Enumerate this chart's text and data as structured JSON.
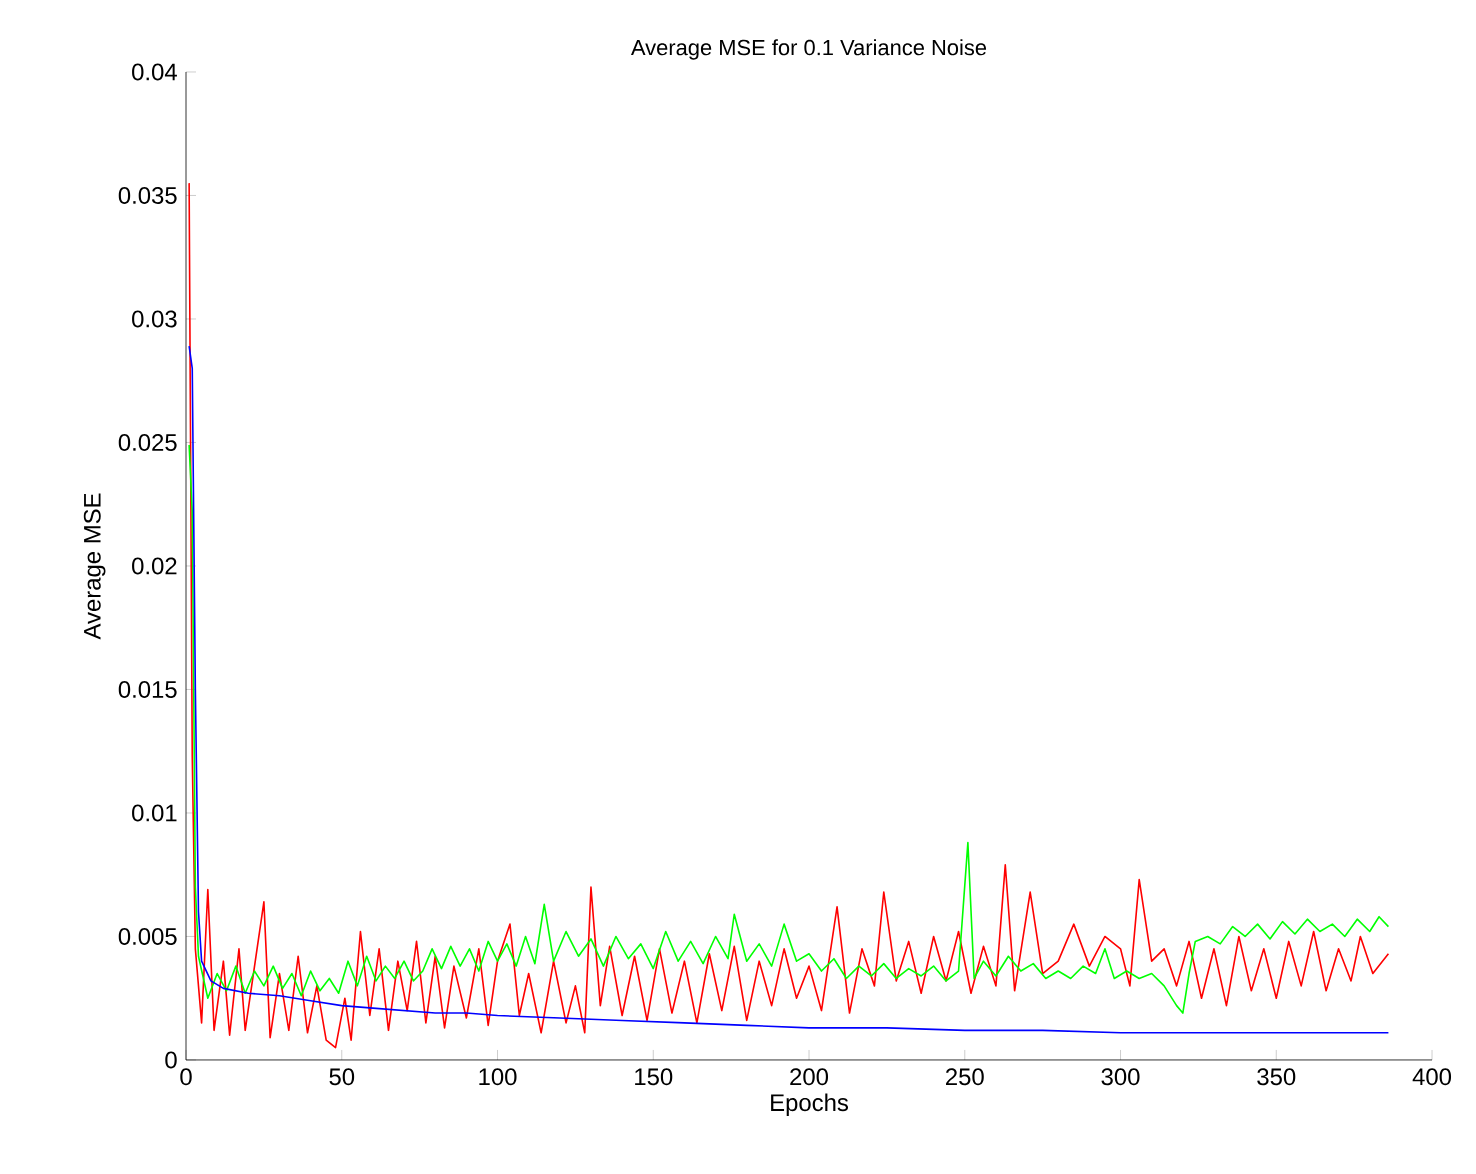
{
  "chart_data": {
    "type": "line",
    "title": "Average MSE for 0.1 Variance Noise",
    "xlabel": "Epochs",
    "ylabel": "Average MSE",
    "xlim": [
      0,
      400
    ],
    "ylim": [
      0,
      0.04
    ],
    "xticks": [
      0,
      50,
      100,
      150,
      200,
      250,
      300,
      350,
      400
    ],
    "yticks": [
      0,
      0.005,
      0.01,
      0.015,
      0.02,
      0.025,
      0.03,
      0.035,
      0.04
    ],
    "series": [
      {
        "color": "#ff0000",
        "x": [
          1,
          2,
          3,
          5,
          7,
          9,
          12,
          14,
          17,
          19,
          22,
          25,
          27,
          30,
          33,
          36,
          39,
          42,
          45,
          48,
          51,
          53,
          56,
          59,
          62,
          65,
          68,
          71,
          74,
          77,
          80,
          83,
          86,
          90,
          94,
          97,
          100,
          104,
          107,
          110,
          114,
          118,
          122,
          125,
          128,
          130,
          133,
          136,
          140,
          144,
          148,
          152,
          156,
          160,
          164,
          168,
          172,
          176,
          180,
          184,
          188,
          192,
          196,
          200,
          204,
          209,
          213,
          217,
          221,
          224,
          228,
          232,
          236,
          240,
          244,
          248,
          252,
          256,
          260,
          263,
          266,
          271,
          275,
          280,
          285,
          290,
          295,
          300,
          303,
          306,
          310,
          314,
          318,
          322,
          326,
          330,
          334,
          338,
          342,
          346,
          350,
          354,
          358,
          362,
          366,
          370,
          374,
          377,
          381,
          386
        ],
        "values": [
          0.0355,
          0.0123,
          0.0045,
          0.0015,
          0.0069,
          0.0012,
          0.004,
          0.001,
          0.0045,
          0.0012,
          0.0038,
          0.0064,
          0.0009,
          0.0035,
          0.0012,
          0.0042,
          0.0011,
          0.003,
          0.0008,
          0.0005,
          0.0025,
          0.0008,
          0.0052,
          0.0018,
          0.0045,
          0.0012,
          0.004,
          0.002,
          0.0048,
          0.0015,
          0.0042,
          0.0013,
          0.0038,
          0.0017,
          0.0045,
          0.0014,
          0.004,
          0.0055,
          0.0018,
          0.0035,
          0.0011,
          0.004,
          0.0015,
          0.003,
          0.0011,
          0.007,
          0.0022,
          0.0046,
          0.0018,
          0.0042,
          0.0016,
          0.0045,
          0.0019,
          0.004,
          0.0015,
          0.0043,
          0.002,
          0.0046,
          0.0016,
          0.004,
          0.0022,
          0.0045,
          0.0025,
          0.0038,
          0.002,
          0.0062,
          0.0019,
          0.0045,
          0.003,
          0.0068,
          0.0032,
          0.0048,
          0.0027,
          0.005,
          0.0032,
          0.0052,
          0.0027,
          0.0046,
          0.003,
          0.0079,
          0.0028,
          0.0068,
          0.0035,
          0.004,
          0.0055,
          0.0038,
          0.005,
          0.0045,
          0.003,
          0.0073,
          0.004,
          0.0045,
          0.003,
          0.0048,
          0.0025,
          0.0045,
          0.0022,
          0.005,
          0.0028,
          0.0045,
          0.0025,
          0.0048,
          0.003,
          0.0052,
          0.0028,
          0.0045,
          0.0032,
          0.005,
          0.0035,
          0.0043
        ]
      },
      {
        "color": "#00ff00",
        "x": [
          1,
          2,
          3,
          4,
          7,
          10,
          13,
          16,
          19,
          22,
          25,
          28,
          31,
          34,
          37,
          40,
          43,
          46,
          49,
          52,
          55,
          58,
          61,
          64,
          67,
          70,
          73,
          76,
          79,
          82,
          85,
          88,
          91,
          94,
          97,
          100,
          103,
          106,
          109,
          112,
          115,
          118,
          122,
          126,
          130,
          134,
          138,
          142,
          146,
          150,
          154,
          158,
          162,
          166,
          170,
          174,
          176,
          180,
          184,
          188,
          192,
          196,
          200,
          204,
          208,
          212,
          216,
          220,
          224,
          228,
          232,
          236,
          240,
          244,
          248,
          251,
          253,
          256,
          260,
          264,
          268,
          272,
          276,
          280,
          284,
          288,
          292,
          295,
          298,
          302,
          306,
          310,
          314,
          318,
          320,
          322,
          324,
          328,
          332,
          336,
          340,
          344,
          348,
          352,
          356,
          360,
          364,
          368,
          372,
          376,
          380,
          383,
          386
        ],
        "values": [
          0.0249,
          0.0222,
          0.007,
          0.0042,
          0.0025,
          0.0035,
          0.0028,
          0.0038,
          0.0027,
          0.0036,
          0.003,
          0.0038,
          0.0029,
          0.0035,
          0.0026,
          0.0036,
          0.0028,
          0.0033,
          0.0027,
          0.004,
          0.003,
          0.0042,
          0.0032,
          0.0038,
          0.0033,
          0.004,
          0.0032,
          0.0036,
          0.0045,
          0.0037,
          0.0046,
          0.0038,
          0.0045,
          0.0036,
          0.0048,
          0.004,
          0.0047,
          0.0038,
          0.005,
          0.0039,
          0.0063,
          0.004,
          0.0052,
          0.0042,
          0.0049,
          0.0038,
          0.005,
          0.0041,
          0.0047,
          0.0037,
          0.0052,
          0.004,
          0.0048,
          0.0039,
          0.005,
          0.0041,
          0.0059,
          0.004,
          0.0047,
          0.0038,
          0.0055,
          0.004,
          0.0043,
          0.0036,
          0.0041,
          0.0033,
          0.0038,
          0.0034,
          0.0039,
          0.0033,
          0.0037,
          0.0034,
          0.0038,
          0.0032,
          0.0036,
          0.0088,
          0.0033,
          0.004,
          0.0034,
          0.0042,
          0.0036,
          0.0039,
          0.0033,
          0.0036,
          0.0033,
          0.0038,
          0.0035,
          0.0045,
          0.0033,
          0.0036,
          0.0033,
          0.0035,
          0.003,
          0.0022,
          0.0019,
          0.0035,
          0.0048,
          0.005,
          0.0047,
          0.0054,
          0.005,
          0.0055,
          0.0049,
          0.0056,
          0.0051,
          0.0057,
          0.0052,
          0.0055,
          0.005,
          0.0057,
          0.0052,
          0.0058,
          0.0054
        ]
      },
      {
        "color": "#0000ff",
        "x": [
          1,
          2,
          3,
          4,
          5,
          8,
          12,
          20,
          30,
          40,
          50,
          60,
          70,
          80,
          90,
          100,
          120,
          140,
          160,
          180,
          200,
          225,
          250,
          275,
          300,
          325,
          350,
          386
        ],
        "values": [
          0.0289,
          0.028,
          0.015,
          0.006,
          0.004,
          0.0032,
          0.0029,
          0.0027,
          0.0026,
          0.0024,
          0.0022,
          0.0021,
          0.002,
          0.0019,
          0.0019,
          0.0018,
          0.0017,
          0.0016,
          0.0015,
          0.0014,
          0.0013,
          0.0013,
          0.0012,
          0.0012,
          0.0011,
          0.0011,
          0.0011,
          0.0011
        ]
      }
    ]
  }
}
